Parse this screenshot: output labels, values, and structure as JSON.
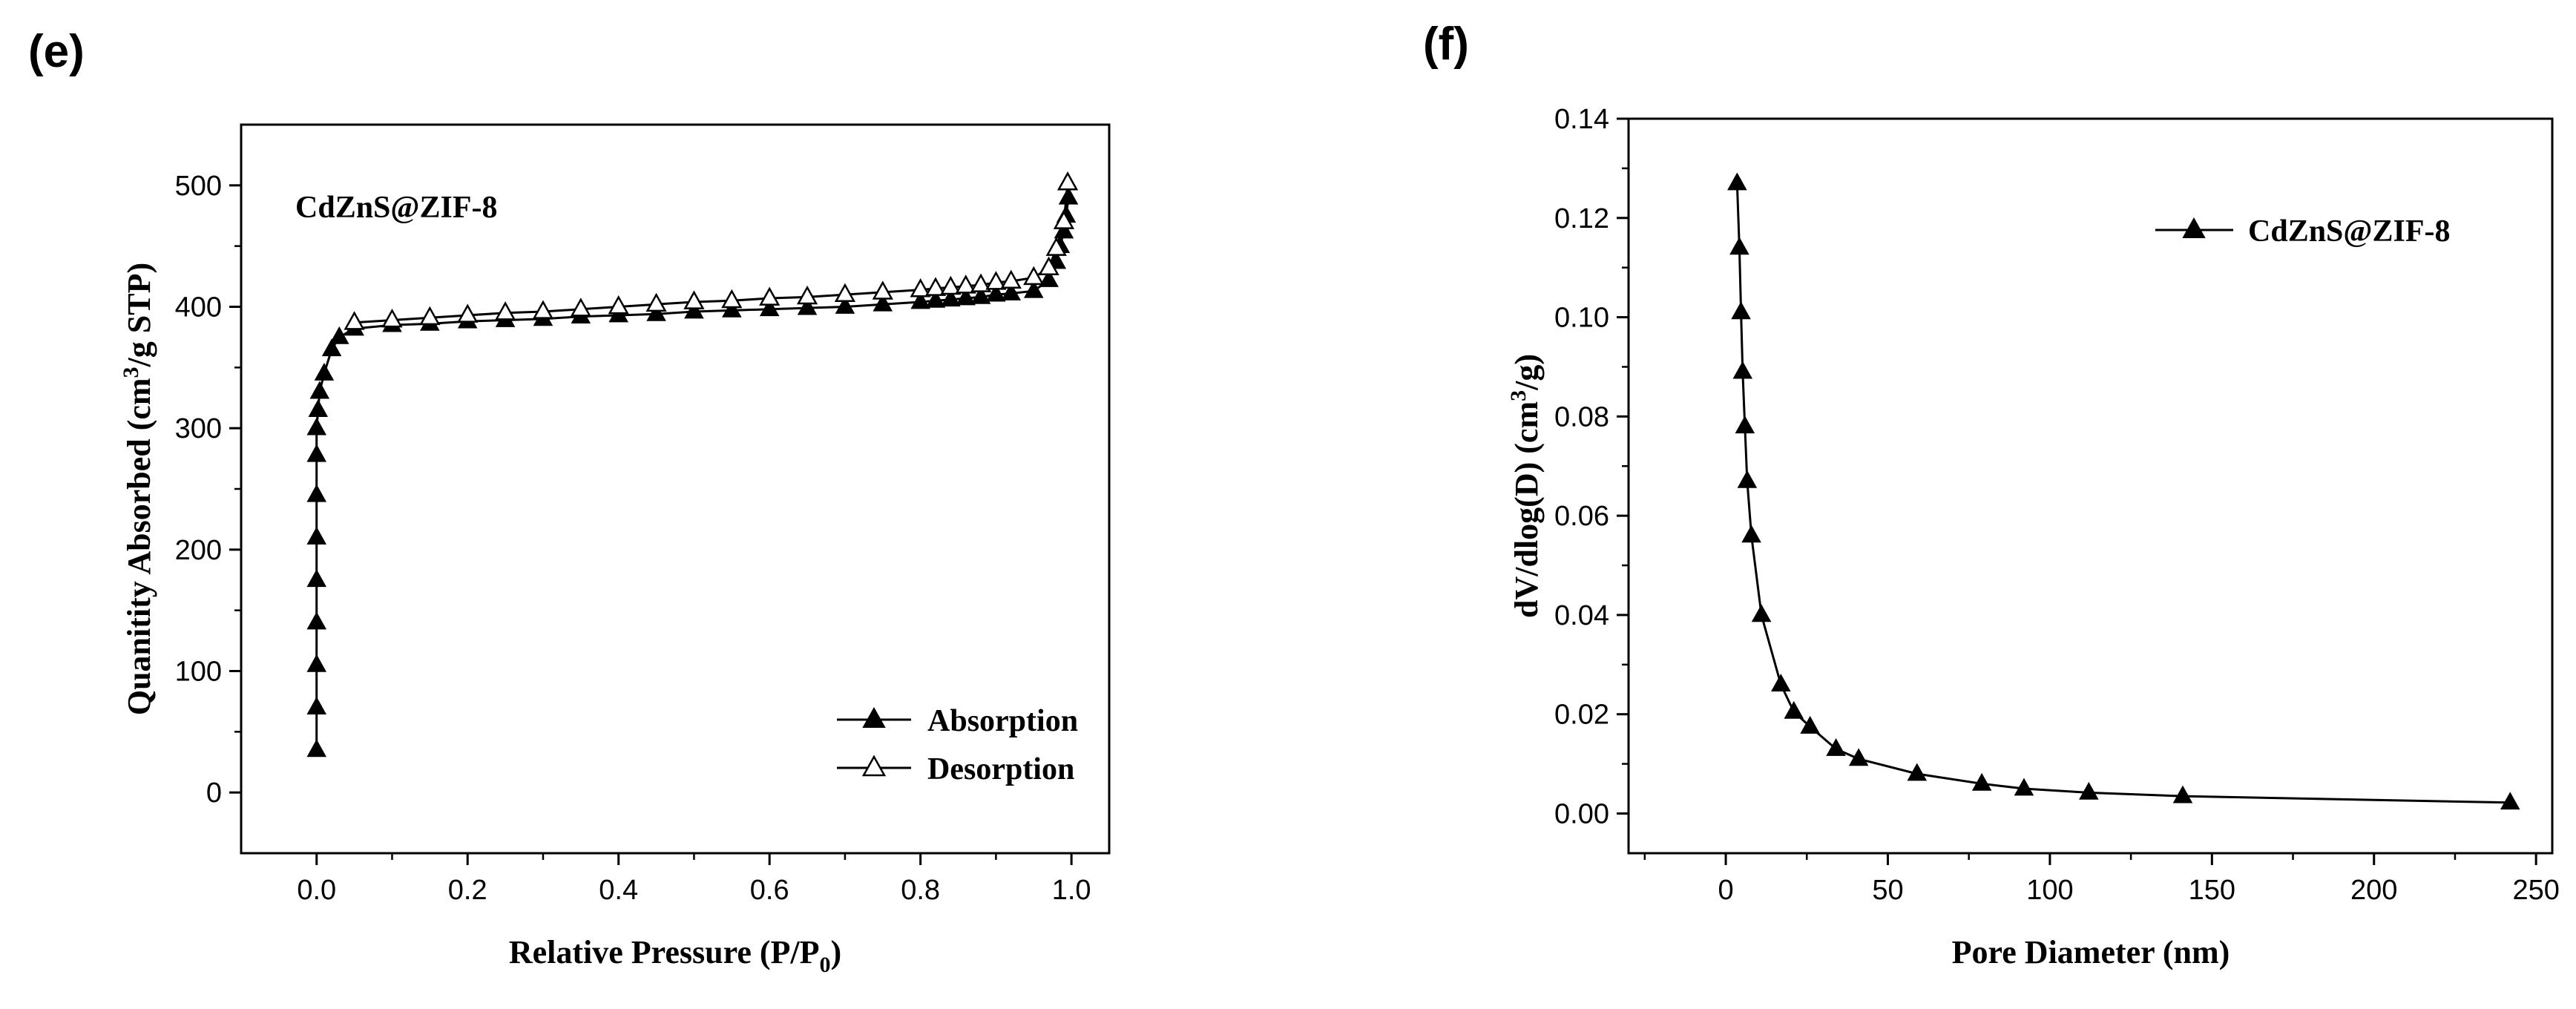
{
  "panel_e_label": "(e)",
  "panel_f_label": "(f)",
  "chart_data": [
    {
      "type": "line",
      "panel": "(e)",
      "sample_label": "CdZnS@ZIF-8",
      "xlabel": "Relative Pressure (P/P",
      "xlabel_sub": "0",
      "xlabel_end": ")",
      "ylabel_a": "Quanitity Absorbed (cm",
      "ylabel_sup": "3",
      "ylabel_b": "/g STP)",
      "xlim": [
        -0.1,
        1.05
      ],
      "ylim": [
        -50,
        550
      ],
      "xticks": [
        0.0,
        0.2,
        0.4,
        0.6,
        0.8,
        1.0
      ],
      "xtick_labels": [
        "0.0",
        "0.2",
        "0.4",
        "0.6",
        "0.8",
        "1.0"
      ],
      "yticks": [
        0,
        100,
        200,
        300,
        400,
        500
      ],
      "ytick_labels": [
        "0",
        "100",
        "200",
        "300",
        "400",
        "500"
      ],
      "legend_position": "bottom-right",
      "series": [
        {
          "name": "Absorption",
          "marker": "filled-triangle",
          "x": [
            0.0,
            0.0,
            0.0,
            0.0,
            0.0,
            0.0,
            0.0,
            0.0,
            0.0,
            0.002,
            0.004,
            0.01,
            0.02,
            0.03,
            0.05,
            0.1,
            0.15,
            0.2,
            0.25,
            0.3,
            0.35,
            0.4,
            0.45,
            0.5,
            0.55,
            0.6,
            0.65,
            0.7,
            0.75,
            0.8,
            0.82,
            0.84,
            0.86,
            0.88,
            0.9,
            0.92,
            0.95,
            0.97,
            0.98,
            0.985,
            0.99,
            0.993,
            0.996
          ],
          "y": [
            35,
            70,
            105,
            140,
            175,
            210,
            245,
            278,
            300,
            315,
            330,
            345,
            365,
            375,
            382,
            385,
            386,
            388,
            389,
            390,
            392,
            393,
            394,
            396,
            397,
            398,
            399,
            400,
            402,
            404,
            405,
            406,
            407,
            408,
            410,
            411,
            413,
            422,
            437,
            450,
            462,
            475,
            490
          ]
        },
        {
          "name": "Desorption",
          "marker": "open-triangle",
          "x": [
            0.05,
            0.1,
            0.15,
            0.2,
            0.25,
            0.3,
            0.35,
            0.4,
            0.45,
            0.5,
            0.55,
            0.6,
            0.65,
            0.7,
            0.75,
            0.8,
            0.82,
            0.84,
            0.86,
            0.88,
            0.9,
            0.92,
            0.95,
            0.97,
            0.98,
            0.99,
            0.995
          ],
          "y": [
            387,
            389,
            391,
            393,
            395,
            396,
            398,
            400,
            402,
            404,
            405,
            407,
            408,
            410,
            412,
            414,
            415,
            416,
            417,
            418,
            420,
            421,
            424,
            432,
            448,
            470,
            502
          ]
        }
      ]
    },
    {
      "type": "line",
      "panel": "(f)",
      "xlabel": "Pore Diameter (nm)",
      "ylabel_a": "dV/dlog(D) (cm",
      "ylabel_sup": "3",
      "ylabel_b": "/g)",
      "xlim": [
        -30,
        255
      ],
      "ylim": [
        -0.008,
        0.14
      ],
      "xticks": [
        0,
        50,
        100,
        150,
        200,
        250
      ],
      "xtick_labels": [
        "0",
        "50",
        "100",
        "150",
        "200",
        "250"
      ],
      "yticks": [
        0.0,
        0.02,
        0.04,
        0.06,
        0.08,
        0.1,
        0.12,
        0.14
      ],
      "ytick_labels": [
        "0.00",
        "0.02",
        "0.04",
        "0.06",
        "0.08",
        "0.10",
        "0.12",
        "0.14"
      ],
      "legend_position": "top-right",
      "series": [
        {
          "name": "CdZnS@ZIF-8",
          "marker": "filled-triangle",
          "x": [
            3.5,
            4.2,
            4.7,
            5.2,
            5.9,
            6.6,
            7.9,
            11,
            17,
            21,
            26,
            34,
            41,
            59,
            79,
            92,
            112,
            141,
            242
          ],
          "y": [
            0.127,
            0.114,
            0.101,
            0.089,
            0.078,
            0.067,
            0.056,
            0.04,
            0.026,
            0.0205,
            0.0175,
            0.013,
            0.011,
            0.008,
            0.006,
            0.005,
            0.0042,
            0.0035,
            0.0022
          ]
        }
      ]
    }
  ]
}
